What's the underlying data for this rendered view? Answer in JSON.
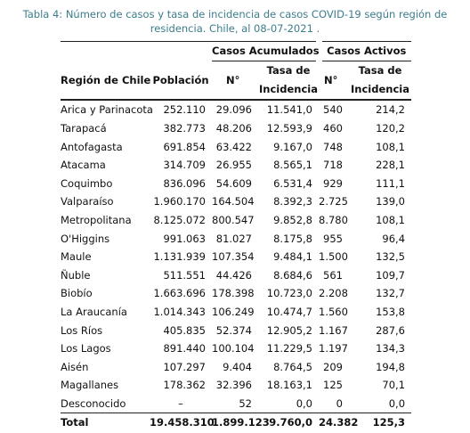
{
  "caption": "Tabla 4: Número de casos y tasa de incidencia de casos COVID-19 según región de residencia. Chile, al 08-07-2021 .",
  "table": {
    "group_headers": [
      "Casos Acumulados",
      "Casos Activos"
    ],
    "headers": [
      "Región de Chile",
      "Población",
      "N°",
      "Tasa de Incidencia",
      "N°",
      "Tasa de Incidencia"
    ],
    "rows": [
      [
        "Arica y Parinacota",
        "252.110",
        "29.096",
        "11.541,0",
        "540",
        "214,2"
      ],
      [
        "Tarapacá",
        "382.773",
        "48.206",
        "12.593,9",
        "460",
        "120,2"
      ],
      [
        "Antofagasta",
        "691.854",
        "63.422",
        "9.167,0",
        "748",
        "108,1"
      ],
      [
        "Atacama",
        "314.709",
        "26.955",
        "8.565,1",
        "718",
        "228,1"
      ],
      [
        "Coquimbo",
        "836.096",
        "54.609",
        "6.531,4",
        "929",
        "111,1"
      ],
      [
        "Valparaíso",
        "1.960.170",
        "164.504",
        "8.392,3",
        "2.725",
        "139,0"
      ],
      [
        "Metropolitana",
        "8.125.072",
        "800.547",
        "9.852,8",
        "8.780",
        "108,1"
      ],
      [
        "O'Higgins",
        "991.063",
        "81.027",
        "8.175,8",
        "955",
        "96,4"
      ],
      [
        "Maule",
        "1.131.939",
        "107.354",
        "9.484,1",
        "1.500",
        "132,5"
      ],
      [
        "Ñuble",
        "511.551",
        "44.426",
        "8.684,6",
        "561",
        "109,7"
      ],
      [
        "Biobío",
        "1.663.696",
        "178.398",
        "10.723,0",
        "2.208",
        "132,7"
      ],
      [
        "La Araucanía",
        "1.014.343",
        "106.249",
        "10.474,7",
        "1.560",
        "153,8"
      ],
      [
        "Los Ríos",
        "405.835",
        "52.374",
        "12.905,2",
        "1.167",
        "287,6"
      ],
      [
        "Los Lagos",
        "891.440",
        "100.104",
        "11.229,5",
        "1.197",
        "134,3"
      ],
      [
        "Aisén",
        "107.297",
        "9.404",
        "8.764,5",
        "209",
        "194,8"
      ],
      [
        "Magallanes",
        "178.362",
        "32.396",
        "18.163,1",
        "125",
        "70,1"
      ],
      [
        "Desconocido",
        "–",
        "52",
        "0,0",
        "0",
        "0,0"
      ]
    ],
    "total": [
      "Total",
      "19.458.310",
      "1.899.123",
      "9.760,0",
      "24.382",
      "125,3"
    ]
  }
}
